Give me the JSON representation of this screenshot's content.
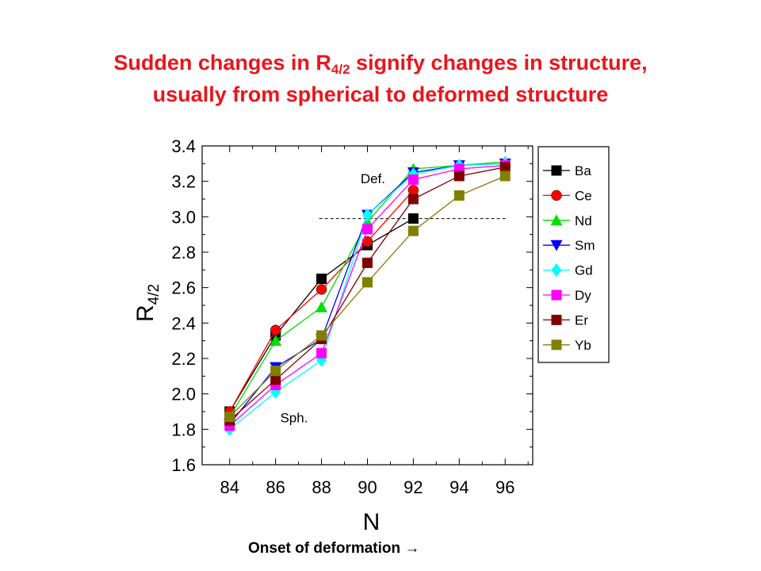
{
  "header": {
    "title_line1_pre": "Sudden changes in R",
    "title_line1_sub": "4/2",
    "title_line1_post": " signify changes in structure,",
    "title_line2": "usually from spherical to deformed structure"
  },
  "footer": {
    "text": "Onset of deformation",
    "arrow": "→"
  },
  "chart_data": {
    "type": "line",
    "xlabel": "N",
    "ylabel_main": "R",
    "ylabel_sub": "4/2",
    "x": [
      84,
      86,
      88,
      90,
      92,
      94,
      96
    ],
    "xlim": [
      82.8,
      97.2
    ],
    "ylim": [
      1.6,
      3.4
    ],
    "yticks": [
      1.6,
      1.8,
      2.0,
      2.2,
      2.4,
      2.6,
      2.8,
      3.0,
      3.2,
      3.4
    ],
    "ytick_labels": [
      "1.6",
      "1.8",
      "2.0",
      "2.2",
      "2.4",
      "2.6",
      "2.8",
      "3.0",
      "3.2",
      "3.4"
    ],
    "xtick_labels": [
      "84",
      "86",
      "88",
      "90",
      "92",
      "94",
      "96"
    ],
    "reference_line": {
      "y": 2.99,
      "x_from": 87.9,
      "x_to": 96.1,
      "style": "dashed"
    },
    "annotations": [
      {
        "text": "Def.",
        "x": 89.7,
        "y": 3.19
      },
      {
        "text": "Sph.",
        "x": 86.2,
        "y": 1.84
      }
    ],
    "legend_position": "right-outside",
    "series": [
      {
        "name": "Ba",
        "color": "#000000",
        "marker": "square",
        "values": [
          1.9,
          2.33,
          2.65,
          2.84,
          2.99,
          null,
          null
        ]
      },
      {
        "name": "Ce",
        "color": "#ff0000",
        "marker": "circle",
        "values": [
          1.9,
          2.36,
          2.59,
          2.86,
          3.15,
          null,
          null
        ]
      },
      {
        "name": "Nd",
        "color": "#00dd00",
        "marker": "triangle-up",
        "values": [
          1.87,
          2.3,
          2.49,
          2.97,
          3.27,
          3.29,
          3.31
        ]
      },
      {
        "name": "Sm",
        "color": "#0000ff",
        "marker": "triangle-down",
        "values": [
          1.83,
          2.15,
          2.31,
          3.01,
          3.25,
          3.29,
          3.3
        ]
      },
      {
        "name": "Gd",
        "color": "#00ffff",
        "marker": "diamond",
        "values": [
          1.8,
          2.01,
          2.19,
          3.01,
          3.24,
          3.29,
          3.3
        ]
      },
      {
        "name": "Dy",
        "color": "#ff00ff",
        "marker": "square",
        "values": [
          1.82,
          2.05,
          2.23,
          2.93,
          3.21,
          3.27,
          3.29
        ]
      },
      {
        "name": "Er",
        "color": "#800000",
        "marker": "square",
        "values": [
          1.85,
          2.08,
          2.31,
          2.74,
          3.1,
          3.23,
          3.28
        ]
      },
      {
        "name": "Yb",
        "color": "#808000",
        "marker": "square",
        "values": [
          1.87,
          2.13,
          2.33,
          2.63,
          2.92,
          3.12,
          3.23
        ]
      }
    ]
  }
}
